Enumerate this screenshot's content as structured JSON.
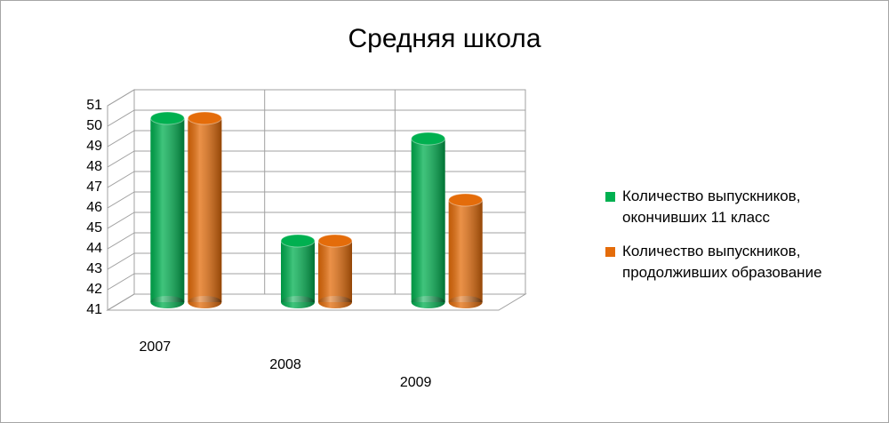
{
  "chart_data": {
    "type": "bar3d",
    "title": "Средняя школа",
    "categories": [
      "2007",
      "2008",
      "2009"
    ],
    "series": [
      {
        "name": "Количество выпускников, окончивших 11 класс",
        "color": "#00b050",
        "values": [
          50,
          44,
          49
        ]
      },
      {
        "name": "Количество выпускников, продолживших образование",
        "color": "#e46c0a",
        "values": [
          50,
          44,
          46
        ]
      }
    ],
    "ylim": [
      41,
      51
    ],
    "yticks": [
      41,
      42,
      43,
      44,
      45,
      46,
      47,
      48,
      49,
      50,
      51
    ],
    "grid": true,
    "legend": "right"
  }
}
